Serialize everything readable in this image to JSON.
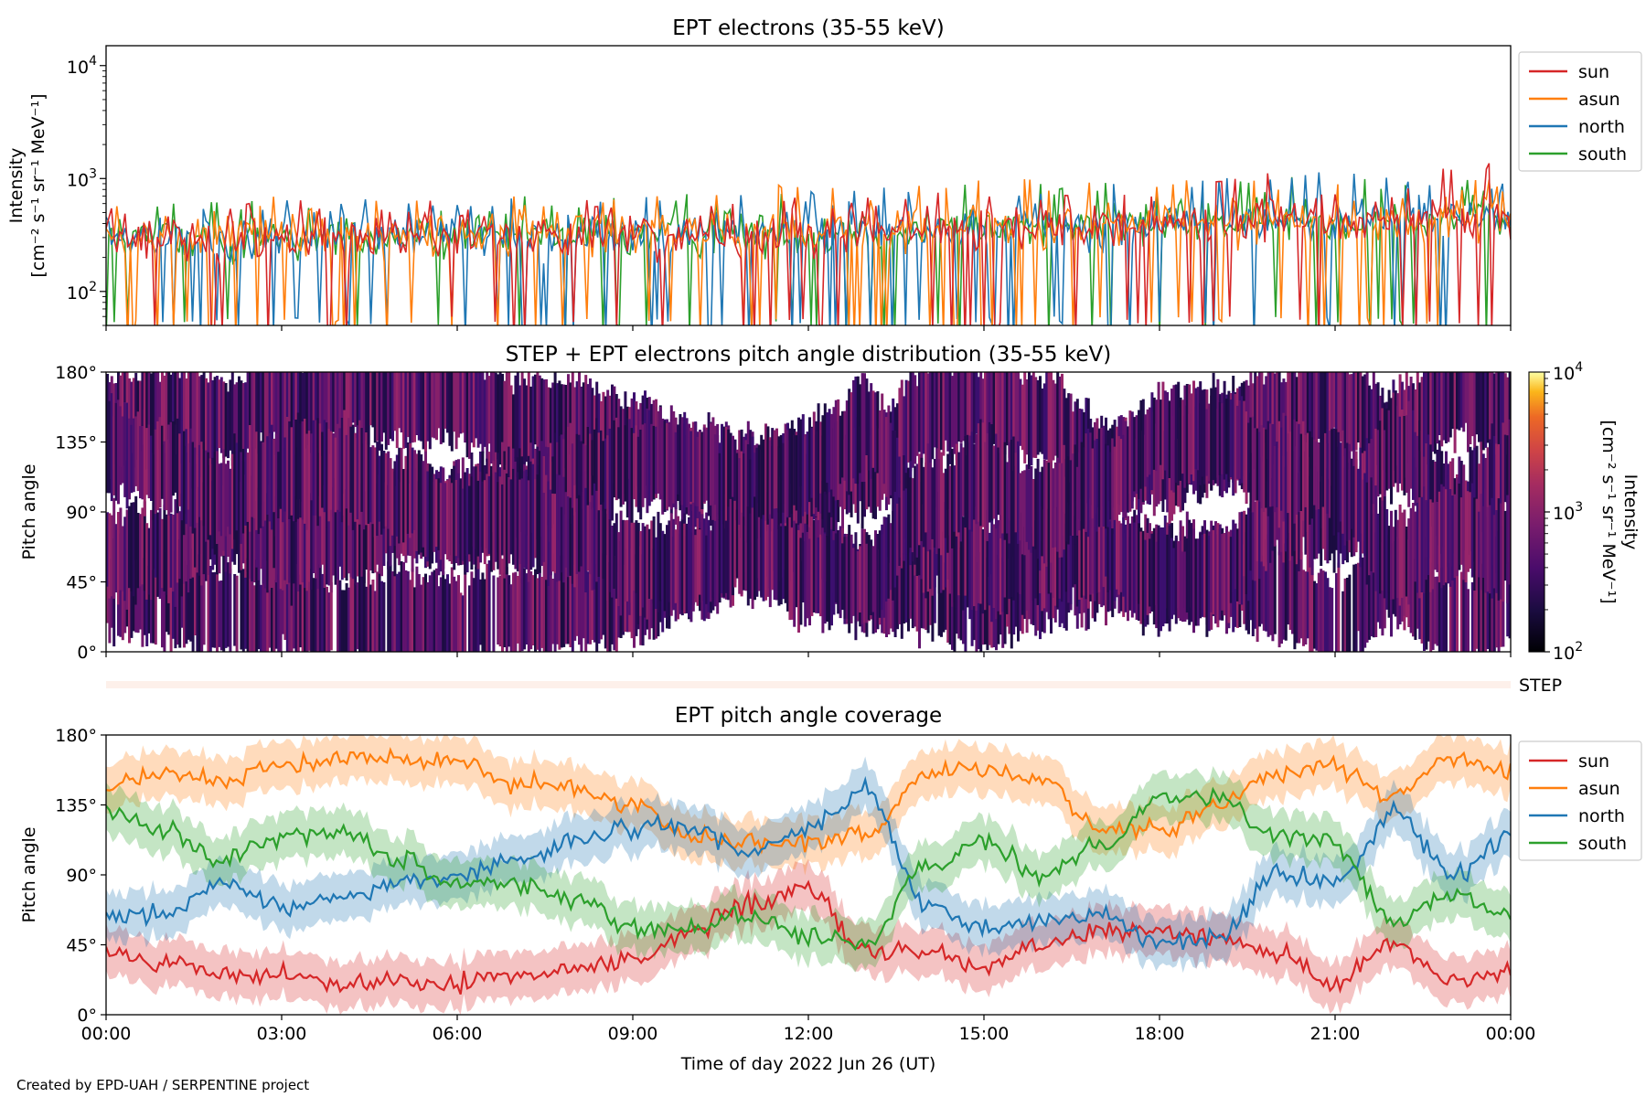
{
  "figure": {
    "credit": "Created by EPD-UAH / SERPENTINE project",
    "xlabel": "Time of day 2022 Jun 26 (UT)",
    "xticks": [
      "00:00",
      "03:00",
      "06:00",
      "09:00",
      "12:00",
      "15:00",
      "18:00",
      "21:00",
      "00:00"
    ]
  },
  "panels": {
    "top": {
      "title": "EPT electrons (35-55 keV)",
      "ylabel_line1": "Intensity",
      "ylabel_line2": "[cm⁻² s⁻¹ sr⁻¹ MeV⁻¹]",
      "ytick_labels": [
        {
          "base": "10",
          "exp": "2"
        },
        {
          "base": "10",
          "exp": "3"
        },
        {
          "base": "10",
          "exp": "4"
        }
      ]
    },
    "middle": {
      "title": "STEP + EPT electrons pitch angle distribution (35-55 keV)",
      "ylabel": "Pitch angle",
      "yticks": [
        "0°",
        "45°",
        "90°",
        "135°",
        "180°"
      ],
      "colorbar_label_line1": "Intensity",
      "colorbar_label_line2": "[cm⁻² s⁻¹ sr⁻¹ MeV⁻¹]",
      "colorbar_ticks": [
        {
          "base": "10",
          "exp": "2"
        },
        {
          "base": "10",
          "exp": "3"
        },
        {
          "base": "10",
          "exp": "4"
        }
      ]
    },
    "step_strip": {
      "label": "STEP"
    },
    "bottom": {
      "title": "EPT pitch angle coverage",
      "ylabel": "Pitch angle",
      "yticks": [
        "0°",
        "45°",
        "90°",
        "135°",
        "180°"
      ]
    }
  },
  "legend": [
    {
      "name": "sun",
      "color": "#d62728"
    },
    {
      "name": "asun",
      "color": "#ff7f0e"
    },
    {
      "name": "north",
      "color": "#1f77b4"
    },
    {
      "name": "south",
      "color": "#2ca02c"
    }
  ],
  "chart_data": [
    {
      "type": "line",
      "title": "EPT electrons (35-55 keV)",
      "ylabel": "Intensity [cm⁻² s⁻¹ sr⁻¹ MeV⁻¹]",
      "yscale": "log",
      "ylim": [
        50,
        15000
      ],
      "xlim_hours": [
        0,
        24
      ],
      "legend_position": "outside-right",
      "description_of_trend": "noisy fluctuating intensities",
      "x_hours": [
        0,
        3,
        6,
        9,
        12,
        15,
        18,
        21,
        24
      ],
      "series": [
        {
          "name": "sun",
          "color": "#d62728",
          "median_approx": [
            300,
            300,
            320,
            320,
            330,
            380,
            400,
            430,
            460
          ],
          "max_approx": [
            600,
            650,
            650,
            700,
            700,
            800,
            900,
            1300,
            1400
          ]
        },
        {
          "name": "asun",
          "color": "#ff7f0e",
          "median_approx": [
            300,
            320,
            320,
            330,
            350,
            380,
            400,
            430,
            460
          ],
          "max_approx": [
            600,
            700,
            700,
            750,
            900,
            1050,
            950,
            1100,
            1000
          ]
        },
        {
          "name": "north",
          "color": "#1f77b4",
          "median_approx": [
            300,
            300,
            320,
            320,
            340,
            380,
            400,
            430,
            460
          ],
          "max_approx": [
            600,
            650,
            700,
            700,
            800,
            900,
            1000,
            1200,
            1000
          ]
        },
        {
          "name": "south",
          "color": "#2ca02c",
          "median_approx": [
            300,
            300,
            320,
            320,
            340,
            380,
            400,
            430,
            460
          ],
          "max_approx": [
            650,
            700,
            700,
            750,
            850,
            950,
            900,
            1100,
            1000
          ]
        }
      ]
    },
    {
      "type": "heatmap",
      "title": "STEP + EPT electrons pitch angle distribution (35-55 keV)",
      "ylabel": "Pitch angle",
      "ylim_deg": [
        0,
        180
      ],
      "xlim_hours": [
        0,
        24
      ],
      "colorscale": "inferno",
      "clim": [
        100,
        10000
      ],
      "clim_scale": "log",
      "colorbar_label": "Intensity [cm⁻² s⁻¹ sr⁻¹ MeV⁻¹]"
    },
    {
      "type": "line",
      "title": "EPT pitch angle coverage",
      "ylabel": "Pitch angle",
      "ylim_deg": [
        0,
        180
      ],
      "xlim_hours": [
        0,
        24
      ],
      "legend_position": "outside-right",
      "band_halfwidth_deg": 15,
      "x_hours": [
        0,
        1,
        2,
        3,
        4,
        5,
        6,
        7,
        8,
        9,
        10,
        11,
        12,
        13,
        14,
        15,
        16,
        17,
        18,
        19,
        20,
        21,
        22,
        23,
        24
      ],
      "series": [
        {
          "name": "sun",
          "color": "#d62728",
          "values": [
            40,
            35,
            25,
            25,
            20,
            20,
            20,
            25,
            30,
            35,
            55,
            70,
            80,
            40,
            40,
            30,
            45,
            55,
            55,
            50,
            40,
            20,
            45,
            20,
            30
          ]
        },
        {
          "name": "asun",
          "color": "#ff7f0e",
          "values": [
            145,
            155,
            150,
            160,
            165,
            165,
            165,
            150,
            145,
            135,
            115,
            110,
            110,
            115,
            155,
            160,
            150,
            120,
            120,
            135,
            155,
            160,
            140,
            165,
            155
          ]
        },
        {
          "name": "north",
          "color": "#1f77b4",
          "values": [
            60,
            65,
            85,
            70,
            75,
            85,
            90,
            100,
            110,
            120,
            120,
            105,
            120,
            145,
            70,
            55,
            60,
            65,
            45,
            50,
            90,
            85,
            130,
            90,
            115
          ]
        },
        {
          "name": "south",
          "color": "#2ca02c",
          "values": [
            130,
            120,
            100,
            115,
            120,
            100,
            85,
            85,
            75,
            55,
            55,
            65,
            50,
            45,
            95,
            110,
            90,
            110,
            140,
            140,
            115,
            110,
            60,
            80,
            65
          ]
        }
      ]
    }
  ]
}
